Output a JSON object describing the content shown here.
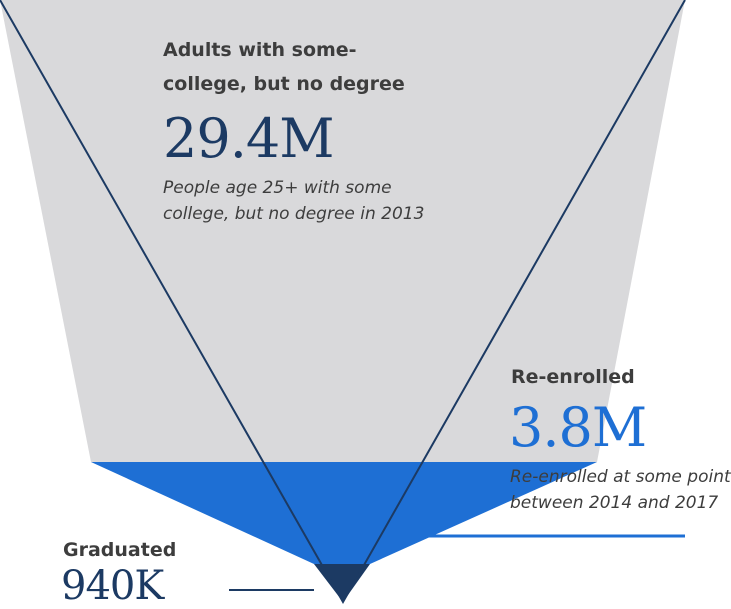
{
  "colors": {
    "funnel_gray": "#d9d9db",
    "funnel_outline": "#1c3a63",
    "accent_blue": "#1e6fd4",
    "dark_navy": "#1c3a63",
    "text_dark": "#3d3d3d"
  },
  "stages": {
    "some_college": {
      "heading_line1": "Adults with some-",
      "heading_line2": "college, but no degree",
      "value": "29.4M",
      "desc_line1": "People age 25+ with some",
      "desc_line2": "college, but no degree in 2013"
    },
    "reenrolled": {
      "heading": "Re-enrolled",
      "value": "3.8M",
      "desc_line1": "Re-enrolled at some point",
      "desc_line2": "between 2014 and 2017"
    },
    "graduated": {
      "heading": "Graduated",
      "value": "940K"
    }
  }
}
